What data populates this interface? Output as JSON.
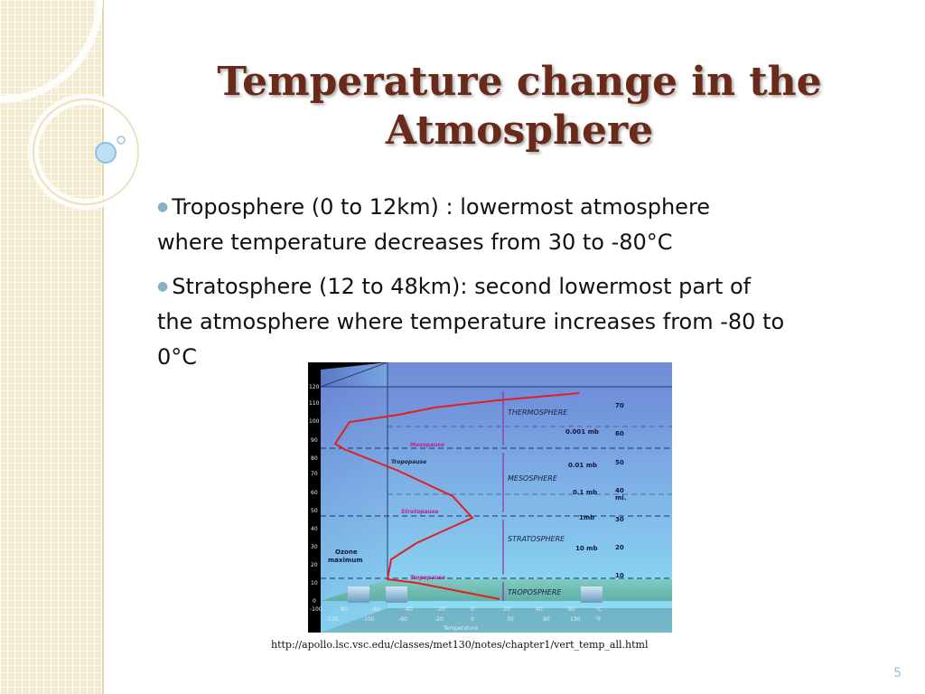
{
  "slide": {
    "title_line1": "Temperature change in the",
    "title_line2": "Atmosphere",
    "bullets": [
      {
        "text_a": "Troposphere (0 to 12km) : lowermost atmosphere",
        "text_b": "where temperature decreases from  30 to -80°C"
      },
      {
        "text_a": "Stratosphere (12 to 48km): second lowermost part of",
        "text_b": "the atmosphere where temperature increases from -80 to",
        "text_c": "0°C"
      }
    ],
    "source_url": "http://apollo.lsc.vsc.edu/classes/met130/notes/chapter1/vert_temp_all.html",
    "slide_number": "5"
  },
  "diagram": {
    "layers": [
      "THERMOSPHERE",
      "MESOSPHERE",
      "STRATOSPHERE",
      "TROPOSPHERE"
    ],
    "boundaries": [
      "Mesopause",
      "Tropopause",
      "Stratopause",
      "Tropopause"
    ],
    "pressures": [
      "0.001 mb",
      "0.01 mb",
      "0.1 mb",
      "1mb",
      "10 mb"
    ],
    "right_axis_ticks": [
      "70",
      "60",
      "50",
      "40",
      "30",
      "20",
      "10"
    ],
    "right_axis_unit": "mi.",
    "ozone_label_1": "Ozone",
    "ozone_label_2": "maximum",
    "temp_c_ticks": [
      "-100",
      "-80",
      "-60",
      "-40",
      "-20",
      "0",
      "20",
      "40",
      "60",
      "°C"
    ],
    "temp_f_ticks": [
      "-135",
      "-100",
      "-60",
      "-20",
      "0",
      "30",
      "90",
      "130",
      "°F"
    ],
    "temp_axis_label": "Temperature"
  }
}
